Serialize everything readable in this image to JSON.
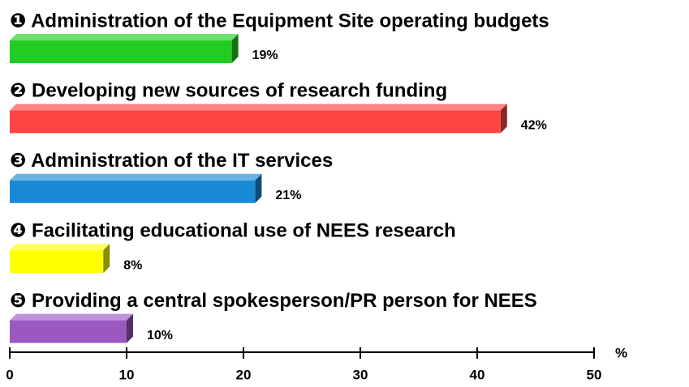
{
  "chart_data": {
    "type": "bar",
    "orientation": "horizontal",
    "categories": [
      "❶ Administration of the Equipment Site operating budgets",
      "❷ Developing new sources of research funding",
      "❸ Administration of the IT services",
      "❹ Facilitating educational use of NEES research",
      "❺ Providing a central spokesperson/PR person for NEES"
    ],
    "values": [
      19,
      42,
      21,
      8,
      10
    ],
    "value_labels": [
      "19%",
      "42%",
      "21%",
      "8%",
      "10%"
    ],
    "colors": [
      "#22cc22",
      "#ff4444",
      "#1a8ad6",
      "#ffff00",
      "#9b59c0"
    ],
    "xlim": [
      0,
      50
    ],
    "xticks": [
      0,
      10,
      20,
      30,
      40,
      50
    ],
    "xlabel": "%"
  }
}
